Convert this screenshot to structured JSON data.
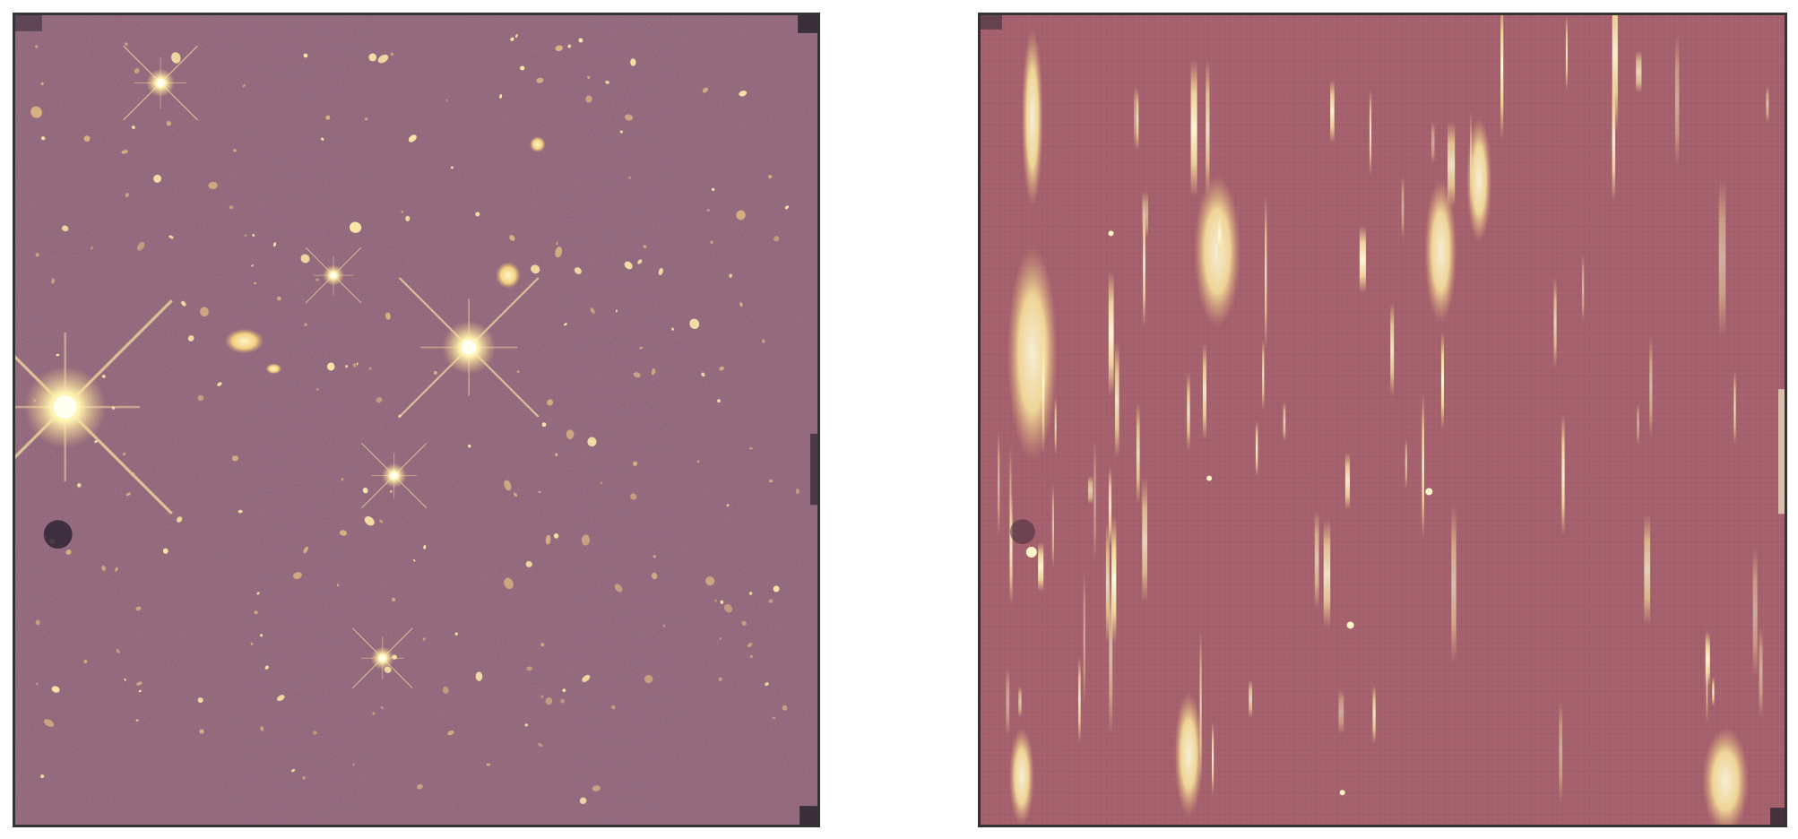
{
  "panels": [
    {
      "id": "direct-image",
      "description_text": ""
    },
    {
      "id": "grism-image",
      "description_text": ""
    }
  ],
  "colors": {
    "background": "#8a5a6e",
    "grism_background": "#a45f6c",
    "source_bright": "#fffbd0",
    "source_mid": "#f4d98a",
    "source_dim": "#d9a673",
    "frame": "#333333",
    "dark_edge": "#2c2530"
  }
}
